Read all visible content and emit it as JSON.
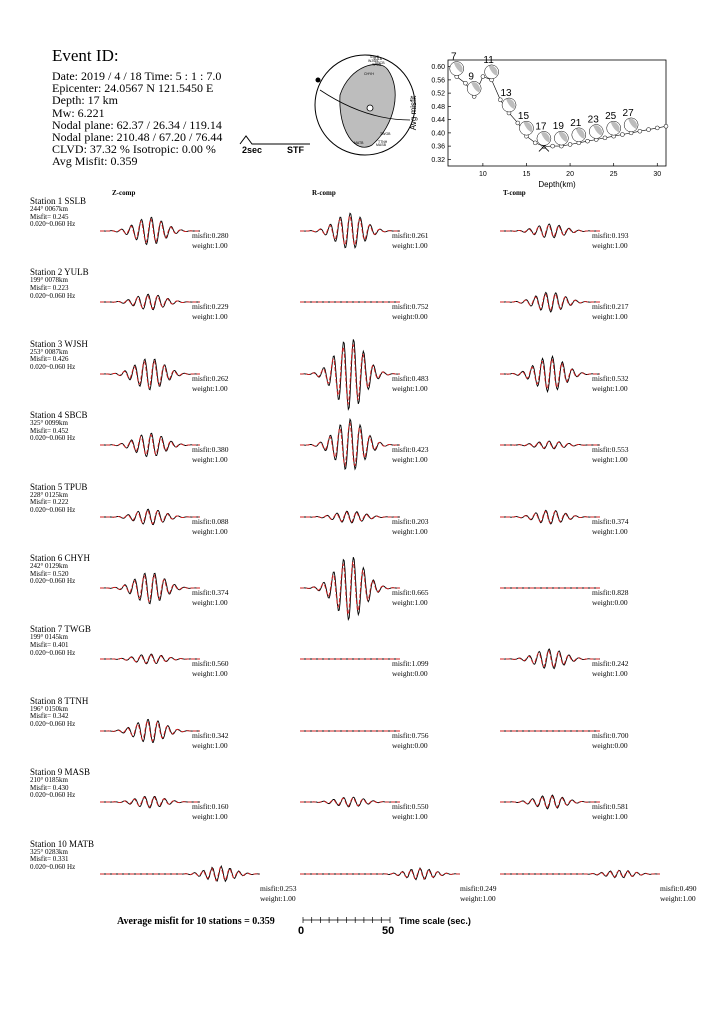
{
  "event": {
    "title": "Event ID:",
    "date": "Date: 2019 / 4 / 18  Time: 5 : 1 : 7.0",
    "epicenter": "Epicenter: 24.0567 N   121.5450 E",
    "depth": "Depth: 17 km",
    "mw": "Mw: 6.221",
    "nodal1": "Nodal plane: 62.37 / 26.34 / 119.14",
    "nodal2": "Nodal plane: 210.48 / 67.20 / 76.44",
    "clvd": "CLVD: 37.32 %  Isotropic: 0.00 %",
    "avg_misfit": "Avg Misfit: 0.359"
  },
  "stf": {
    "duration_label": "2sec",
    "label": "STF"
  },
  "beachball": {
    "station_labels": [
      "SSLB",
      "YULB",
      "WJSH",
      "SBCB",
      "TPUB",
      "CHYH",
      "TWGB",
      "TTNH",
      "MASB",
      "MATB"
    ]
  },
  "components": [
    "Z-comp",
    "R-comp",
    "T-comp"
  ],
  "stations": [
    {
      "name": "Station 1  SSLB",
      "dist": "244°  0067km",
      "misfit": "Misfit= 0.245",
      "band": "0.020~0.060 Hz",
      "comps": [
        {
          "misfit": "misfit:0.280",
          "weight": "weight:1.00",
          "amp": 14,
          "seed": 1
        },
        {
          "misfit": "misfit:0.261",
          "weight": "weight:1.00",
          "amp": 18,
          "seed": 2
        },
        {
          "misfit": "misfit:0.193",
          "weight": "weight:1.00",
          "amp": 7,
          "seed": 3
        }
      ]
    },
    {
      "name": "Station 2  YULB",
      "dist": "199°  0078km",
      "misfit": "Misfit= 0.223",
      "band": "0.020~0.060 Hz",
      "comps": [
        {
          "misfit": "misfit:0.229",
          "weight": "weight:1.00",
          "amp": 8,
          "seed": 4
        },
        {
          "misfit": "misfit:0.752",
          "weight": "weight:0.00",
          "amp": 0,
          "seed": 5
        },
        {
          "misfit": "misfit:0.217",
          "weight": "weight:1.00",
          "amp": 10,
          "seed": 6
        }
      ]
    },
    {
      "name": "Station 3  WJSH",
      "dist": "253°  0087km",
      "misfit": "Misfit= 0.426",
      "band": "0.020~0.060 Hz",
      "comps": [
        {
          "misfit": "misfit:0.262",
          "weight": "weight:1.00",
          "amp": 16,
          "seed": 7
        },
        {
          "misfit": "misfit:0.483",
          "weight": "weight:1.00",
          "amp": 36,
          "seed": 8
        },
        {
          "misfit": "misfit:0.532",
          "weight": "weight:1.00",
          "amp": 18,
          "seed": 9
        }
      ]
    },
    {
      "name": "Station 4  SBCB",
      "dist": "325°  0099km",
      "misfit": "Misfit= 0.452",
      "band": "0.020~0.060 Hz",
      "comps": [
        {
          "misfit": "misfit:0.380",
          "weight": "weight:1.00",
          "amp": 12,
          "seed": 10
        },
        {
          "misfit": "misfit:0.423",
          "weight": "weight:1.00",
          "amp": 26,
          "seed": 11
        },
        {
          "misfit": "misfit:0.553",
          "weight": "weight:1.00",
          "amp": 4,
          "seed": 12
        }
      ]
    },
    {
      "name": "Station 5  TPUB",
      "dist": "228°  0125km",
      "misfit": "Misfit= 0.222",
      "band": "0.020~0.060 Hz",
      "comps": [
        {
          "misfit": "misfit:0.088",
          "weight": "weight:1.00",
          "amp": 8,
          "seed": 13
        },
        {
          "misfit": "misfit:0.203",
          "weight": "weight:1.00",
          "amp": 6,
          "seed": 14
        },
        {
          "misfit": "misfit:0.374",
          "weight": "weight:1.00",
          "amp": 7,
          "seed": 15
        }
      ]
    },
    {
      "name": "Station 6  CHYH",
      "dist": "242°  0129km",
      "misfit": "Misfit= 0.520",
      "band": "0.020~0.060 Hz",
      "comps": [
        {
          "misfit": "misfit:0.374",
          "weight": "weight:1.00",
          "amp": 16,
          "seed": 16
        },
        {
          "misfit": "misfit:0.665",
          "weight": "weight:1.00",
          "amp": 32,
          "seed": 17
        },
        {
          "misfit": "misfit:0.828",
          "weight": "weight:0.00",
          "amp": 0,
          "seed": 18
        }
      ]
    },
    {
      "name": "Station 7  TWGB",
      "dist": "199°  0145km",
      "misfit": "Misfit= 0.401",
      "band": "0.020~0.060 Hz",
      "comps": [
        {
          "misfit": "misfit:0.560",
          "weight": "weight:1.00",
          "amp": 5,
          "seed": 19
        },
        {
          "misfit": "misfit:1.099",
          "weight": "weight:0.00",
          "amp": 0,
          "seed": 20
        },
        {
          "misfit": "misfit:0.242",
          "weight": "weight:1.00",
          "amp": 10,
          "seed": 21
        }
      ]
    },
    {
      "name": "Station 8  TTNH",
      "dist": "196°  0150km",
      "misfit": "Misfit= 0.342",
      "band": "0.020~0.060 Hz",
      "comps": [
        {
          "misfit": "misfit:0.342",
          "weight": "weight:1.00",
          "amp": 12,
          "seed": 22
        },
        {
          "misfit": "misfit:0.756",
          "weight": "weight:0.00",
          "amp": 0,
          "seed": 23
        },
        {
          "misfit": "misfit:0.700",
          "weight": "weight:0.00",
          "amp": 0,
          "seed": 24
        }
      ]
    },
    {
      "name": "Station 9  MASB",
      "dist": "210°  0185km",
      "misfit": "Misfit= 0.430",
      "band": "0.020~0.060 Hz",
      "comps": [
        {
          "misfit": "misfit:0.160",
          "weight": "weight:1.00",
          "amp": 6,
          "seed": 25
        },
        {
          "misfit": "misfit:0.550",
          "weight": "weight:1.00",
          "amp": 5,
          "seed": 26
        },
        {
          "misfit": "misfit:0.581",
          "weight": "weight:1.00",
          "amp": 7,
          "seed": 27
        }
      ]
    },
    {
      "name": "Station 10  MATB",
      "dist": "325°  0283km",
      "misfit": "Misfit= 0.331",
      "band": "0.020~0.060 Hz",
      "comps": [
        {
          "misfit": "misfit:0.253",
          "weight": "weight:1.00",
          "amp": 8,
          "seed": 28
        },
        {
          "misfit": "misfit:0.249",
          "weight": "weight:1.00",
          "amp": 6,
          "seed": 29
        },
        {
          "misfit": "misfit:0.490",
          "weight": "weight:1.00",
          "amp": 4,
          "seed": 30
        }
      ]
    }
  ],
  "footer": {
    "avg_text": "Average misfit for 10 stations = 0.359",
    "scale_start": "0",
    "scale_end": "50",
    "scale_label": "Time scale (sec.)"
  },
  "chart_data": {
    "type": "line",
    "xlabel": "Depth(km)",
    "ylabel": "Avg misfit",
    "xlim": [
      6,
      31
    ],
    "ylim": [
      0.3,
      0.62
    ],
    "xticks": [
      10,
      15,
      20,
      25,
      30
    ],
    "yticks": [
      0.32,
      0.36,
      0.4,
      0.44,
      0.48,
      0.52,
      0.56,
      0.6
    ],
    "best_depth": 17,
    "x": [
      7,
      8,
      9,
      10,
      11,
      12,
      13,
      14,
      15,
      16,
      17,
      18,
      19,
      20,
      21,
      22,
      23,
      24,
      25,
      26,
      27,
      28,
      29,
      30,
      31
    ],
    "values": [
      0.57,
      0.55,
      0.51,
      0.57,
      0.56,
      0.5,
      0.46,
      0.43,
      0.39,
      0.37,
      0.359,
      0.36,
      0.36,
      0.365,
      0.37,
      0.375,
      0.38,
      0.385,
      0.39,
      0.395,
      0.4,
      0.405,
      0.41,
      0.415,
      0.42
    ],
    "labeled_depths": [
      7,
      9,
      11,
      13,
      15,
      17,
      19,
      21,
      23,
      25,
      27
    ]
  }
}
